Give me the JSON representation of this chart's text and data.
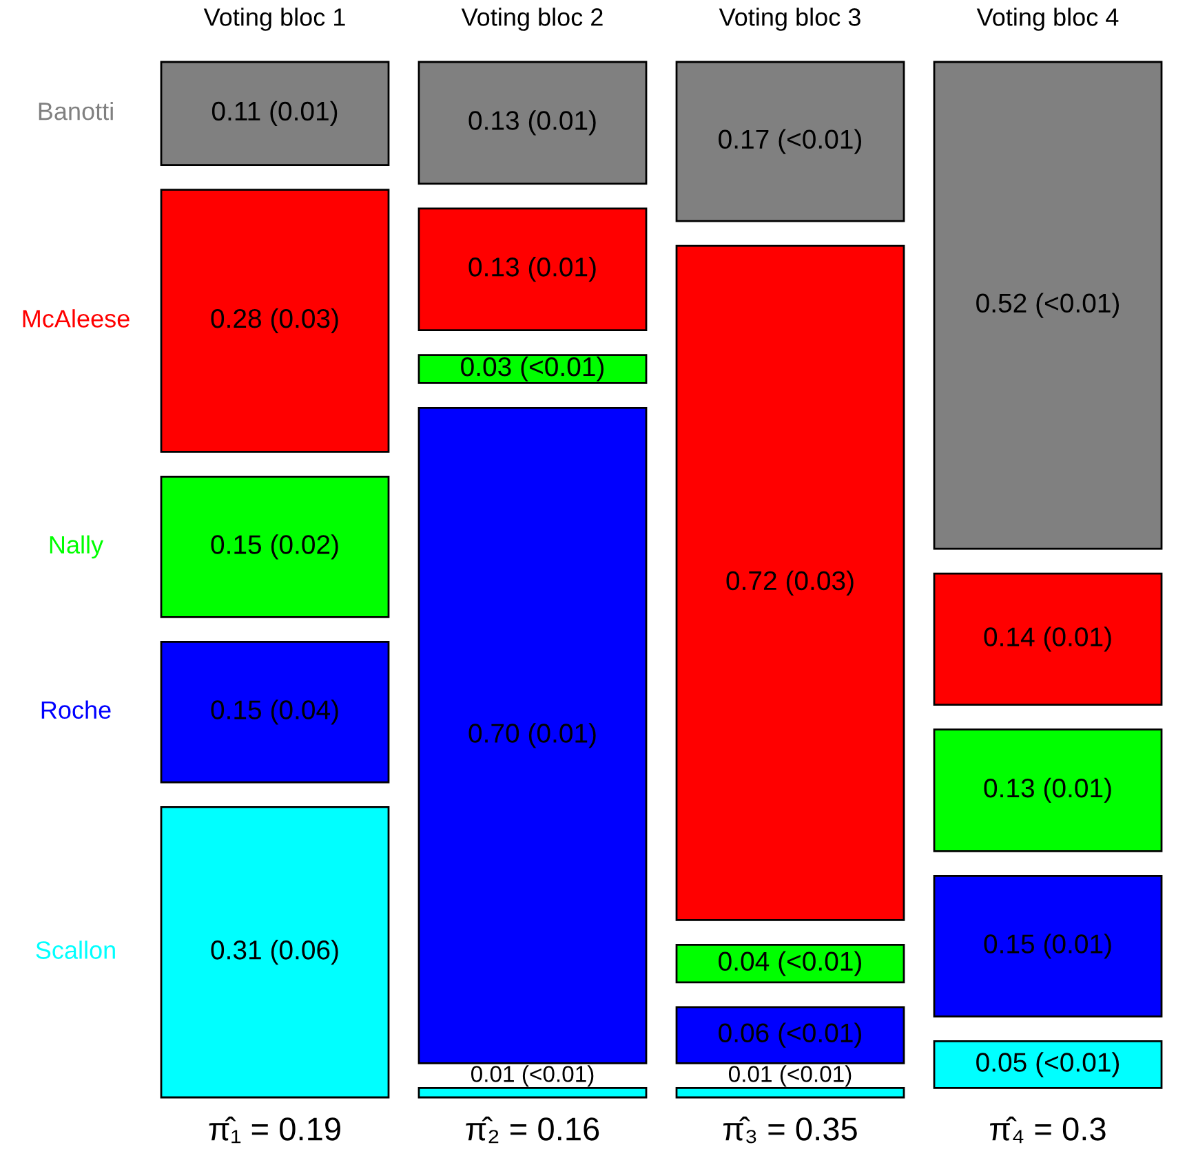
{
  "chart_data": {
    "type": "other",
    "categories": [
      "Voting bloc 1",
      "Voting bloc 2",
      "Voting bloc 3",
      "Voting bloc 4"
    ],
    "legend": "left",
    "series": [
      {
        "name": "Banotti",
        "color": "#808080",
        "values": [
          0.11,
          0.13,
          0.17,
          0.52
        ],
        "value_labels": [
          "0.11 (0.01)",
          "0.13 (0.01)",
          "0.17 (<0.01)",
          "0.52 (<0.01)"
        ]
      },
      {
        "name": "McAleese",
        "color": "#ff0000",
        "values": [
          0.28,
          0.13,
          0.72,
          0.14
        ],
        "value_labels": [
          "0.28 (0.03)",
          "0.13 (0.01)",
          "0.72 (0.03)",
          "0.14 (0.01)"
        ]
      },
      {
        "name": "Nally",
        "color": "#00ff00",
        "values": [
          0.15,
          0.03,
          0.04,
          0.13
        ],
        "value_labels": [
          "0.15 (0.02)",
          "0.03 (<0.01)",
          "0.04 (<0.01)",
          "0.13 (0.01)"
        ]
      },
      {
        "name": "Roche",
        "color": "#0000ff",
        "values": [
          0.15,
          0.7,
          0.06,
          0.15
        ],
        "value_labels": [
          "0.15 (0.04)",
          "0.70 (0.01)",
          "0.06 (<0.01)",
          "0.15 (0.01)"
        ]
      },
      {
        "name": "Scallon",
        "color": "#00ffff",
        "values": [
          0.31,
          0.01,
          0.01,
          0.05
        ],
        "value_labels": [
          "0.31 (0.06)",
          "0.01 (<0.01)",
          "0.01 (<0.01)",
          "0.05 (<0.01)"
        ]
      }
    ],
    "annotations": [
      "π̂₁ = 0.19",
      "π̂₂ = 0.16",
      "π̂₃ = 0.35",
      "π̂₄ = 0.3"
    ]
  }
}
